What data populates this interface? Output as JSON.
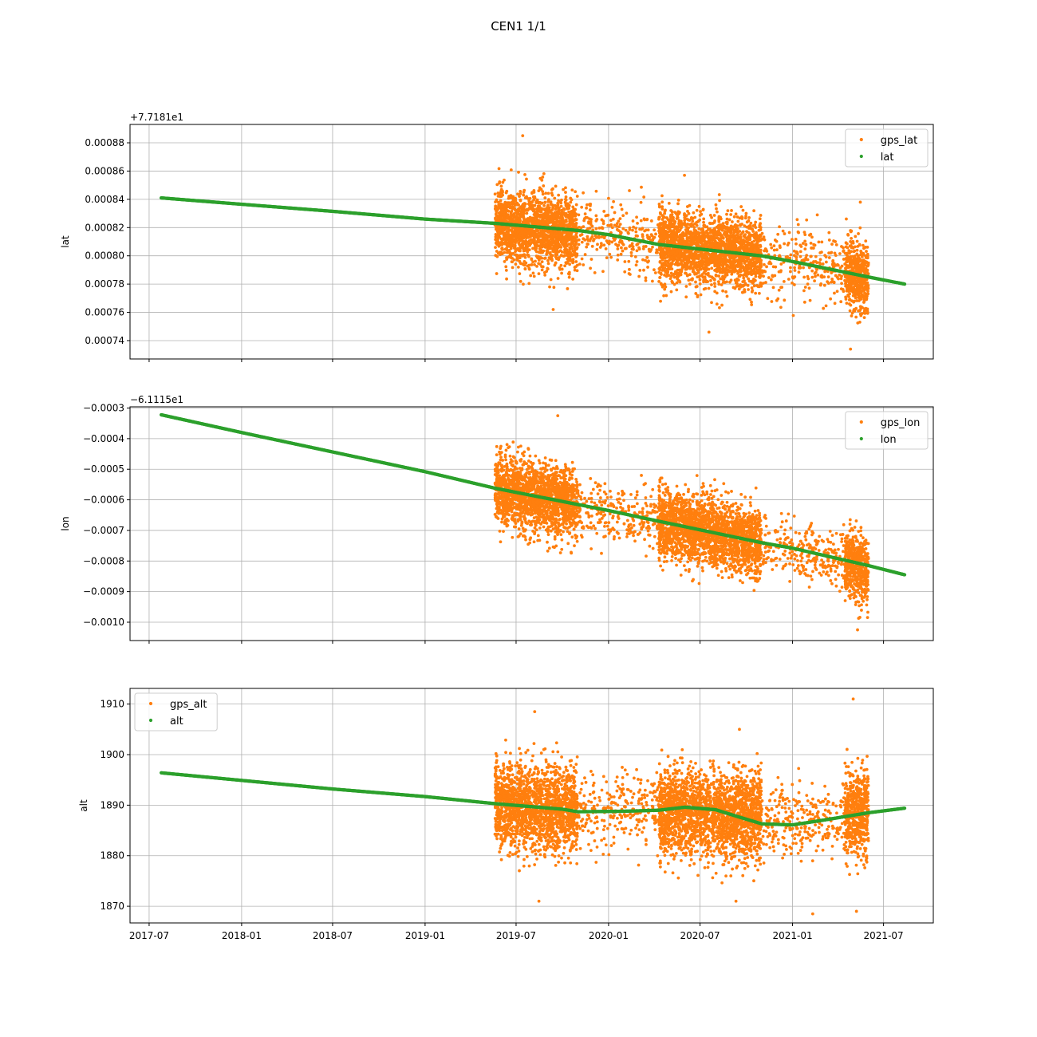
{
  "figure_title": "CEN1 1/1",
  "colors": {
    "gps": "#ff7f0e",
    "model": "#2ca02c",
    "grid": "#b0b0b0",
    "legend_border": "#cccccc"
  },
  "x_axis": {
    "type": "date",
    "range": [
      "2017-05-24",
      "2021-10-08"
    ],
    "ticks": [
      "2017-07",
      "2018-01",
      "2018-07",
      "2019-01",
      "2019-07",
      "2020-01",
      "2020-07",
      "2021-01",
      "2021-07"
    ],
    "tick_labels_only_on_bottom_panel": true
  },
  "chart_data": [
    {
      "type": "scatter",
      "ylabel": "lat",
      "offset_label": "+7.7181e1",
      "ylim": [
        0.000727,
        0.000893
      ],
      "yticks": [
        0.00074,
        0.00076,
        0.00078,
        0.0008,
        0.00082,
        0.00084,
        0.00086,
        0.00088
      ],
      "ytick_labels": [
        "0.00074",
        "0.00076",
        "0.00078",
        "0.00080",
        "0.00082",
        "0.00084",
        "0.00086",
        "0.00088"
      ],
      "grid": true,
      "legend_position": "upper right",
      "series": [
        {
          "name": "gps_lat",
          "color": "#ff7f0e",
          "kind": "dense scatter",
          "clusters": [
            {
              "x_range": [
                "2019-05-20",
                "2019-10-31"
              ],
              "center": [
                0.000822,
                0.000816
              ],
              "spread": 1.25e-05,
              "outliers": [
                0.000885,
                0.000762
              ]
            },
            {
              "x_range": [
                "2019-11-01",
                "2020-04-10"
              ],
              "center": [
                0.000818,
                0.000808
              ],
              "spread": 1.2e-05,
              "sparse": true
            },
            {
              "x_range": [
                "2020-04-10",
                "2020-10-31"
              ],
              "center": [
                0.000808,
                0.0008
              ],
              "spread": 1.25e-05,
              "outliers": [
                0.000857,
                0.000746
              ]
            },
            {
              "x_range": [
                "2020-11-01",
                "2021-04-15"
              ],
              "center": [
                0.000799,
                0.00079
              ],
              "spread": 1.2e-05,
              "sparse": true
            },
            {
              "x_range": [
                "2021-04-15",
                "2021-06-01"
              ],
              "center": [
                0.00079,
                0.000782
              ],
              "spread": 1.2e-05,
              "outliers": [
                0.000838,
                0.000734
              ]
            }
          ]
        },
        {
          "name": "lat",
          "color": "#2ca02c",
          "kind": "line of dots",
          "points": [
            [
              "2017-07-25",
              0.000841
            ],
            [
              "2018-01-01",
              0.0008365
            ],
            [
              "2018-07-01",
              0.0008315
            ],
            [
              "2019-01-01",
              0.000826
            ],
            [
              "2019-05-20",
              0.000823
            ],
            [
              "2019-10-31",
              0.000818
            ],
            [
              "2020-01-01",
              0.000815
            ],
            [
              "2020-04-10",
              0.000808
            ],
            [
              "2020-10-31",
              0.0008
            ],
            [
              "2021-01-01",
              0.000796
            ],
            [
              "2021-06-01",
              0.000785
            ],
            [
              "2021-08-12",
              0.00078
            ]
          ]
        }
      ]
    },
    {
      "type": "scatter",
      "ylabel": "lon",
      "offset_label": "−6.1115e1",
      "ylim": [
        -0.00106,
        -0.000296
      ],
      "yticks": [
        -0.001,
        -0.0009,
        -0.0008,
        -0.0007,
        -0.0006,
        -0.0005,
        -0.0004,
        -0.0003
      ],
      "ytick_labels": [
        "−0.0010",
        "−0.0009",
        "−0.0008",
        "−0.0007",
        "−0.0006",
        "−0.0005",
        "−0.0004",
        "−0.0003"
      ],
      "grid": true,
      "legend_position": "upper right",
      "series": [
        {
          "name": "gps_lon",
          "color": "#ff7f0e",
          "kind": "dense scatter",
          "clusters": [
            {
              "x_range": [
                "2019-05-20",
                "2019-10-31"
              ],
              "center": [
                -0.000562,
                -0.000615
              ],
              "spread": 5.5e-05,
              "outliers": [
                -0.000325
              ]
            },
            {
              "x_range": [
                "2019-11-01",
                "2020-04-10"
              ],
              "center": [
                -0.00063,
                -0.00066
              ],
              "spread": 4.5e-05,
              "sparse": true
            },
            {
              "x_range": [
                "2020-04-10",
                "2020-10-31"
              ],
              "center": [
                -0.00067,
                -0.00074
              ],
              "spread": 5.5e-05
            },
            {
              "x_range": [
                "2020-11-01",
                "2021-04-15"
              ],
              "center": [
                -0.000745,
                -0.0008
              ],
              "spread": 4.5e-05,
              "sparse": true
            },
            {
              "x_range": [
                "2021-04-15",
                "2021-06-01"
              ],
              "center": [
                -0.0008,
                -0.00083
              ],
              "spread": 5.5e-05,
              "outliers": [
                -0.001025
              ]
            }
          ]
        },
        {
          "name": "lon",
          "color": "#2ca02c",
          "kind": "line of dots",
          "points": [
            [
              "2017-07-25",
              -0.000322
            ],
            [
              "2018-01-01",
              -0.00038
            ],
            [
              "2019-01-01",
              -0.000508
            ],
            [
              "2019-05-20",
              -0.000562
            ],
            [
              "2019-10-31",
              -0.000615
            ],
            [
              "2020-01-01",
              -0.000635
            ],
            [
              "2020-04-10",
              -0.00067
            ],
            [
              "2020-10-31",
              -0.00074
            ],
            [
              "2021-01-01",
              -0.000758
            ],
            [
              "2021-06-01",
              -0.000815
            ],
            [
              "2021-08-12",
              -0.000845
            ]
          ]
        }
      ]
    },
    {
      "type": "scatter",
      "ylabel": "alt",
      "offset_label": "",
      "ylim": [
        1866.7,
        1913.1
      ],
      "yticks": [
        1870,
        1880,
        1890,
        1900,
        1910
      ],
      "ytick_labels": [
        "1870",
        "1880",
        "1890",
        "1900",
        "1910"
      ],
      "grid": true,
      "legend_position": "upper left",
      "series": [
        {
          "name": "gps_alt",
          "color": "#ff7f0e",
          "kind": "dense scatter",
          "clusters": [
            {
              "x_range": [
                "2019-05-20",
                "2019-10-31"
              ],
              "center": [
                1890.2,
                1888.8
              ],
              "spread": 4.2,
              "outliers": [
                1908.5,
                1871.0
              ]
            },
            {
              "x_range": [
                "2019-11-01",
                "2020-04-10"
              ],
              "center": [
                1888.8,
                1889.0
              ],
              "spread": 3.5,
              "sparse": true
            },
            {
              "x_range": [
                "2020-04-10",
                "2020-10-31"
              ],
              "center": [
                1889.0,
                1887.5
              ],
              "spread": 4.2,
              "outliers": [
                1905.0,
                1871.0
              ]
            },
            {
              "x_range": [
                "2020-11-01",
                "2021-04-15"
              ],
              "center": [
                1886.5,
                1887.0
              ],
              "spread": 3.5,
              "sparse": true,
              "outliers": [
                1868.5
              ]
            },
            {
              "x_range": [
                "2021-04-15",
                "2021-06-01"
              ],
              "center": [
                1887.5,
                1888.5
              ],
              "spread": 4.2,
              "outliers": [
                1911.0,
                1869.0
              ]
            }
          ]
        },
        {
          "name": "alt",
          "color": "#2ca02c",
          "kind": "line of dots",
          "points": [
            [
              "2017-07-25",
              1896.4
            ],
            [
              "2018-01-01",
              1894.9
            ],
            [
              "2018-07-01",
              1893.2
            ],
            [
              "2019-01-01",
              1891.7
            ],
            [
              "2019-05-20",
              1890.3
            ],
            [
              "2019-10-01",
              1889.2
            ],
            [
              "2019-11-01",
              1888.7
            ],
            [
              "2020-02-01",
              1888.8
            ],
            [
              "2020-04-10",
              1889.0
            ],
            [
              "2020-06-01",
              1889.6
            ],
            [
              "2020-08-01",
              1889.1
            ],
            [
              "2020-09-15",
              1887.7
            ],
            [
              "2020-11-01",
              1886.3
            ],
            [
              "2021-01-01",
              1886.1
            ],
            [
              "2021-03-01",
              1887.0
            ],
            [
              "2021-06-01",
              1888.5
            ],
            [
              "2021-08-12",
              1889.4
            ]
          ]
        }
      ]
    }
  ]
}
